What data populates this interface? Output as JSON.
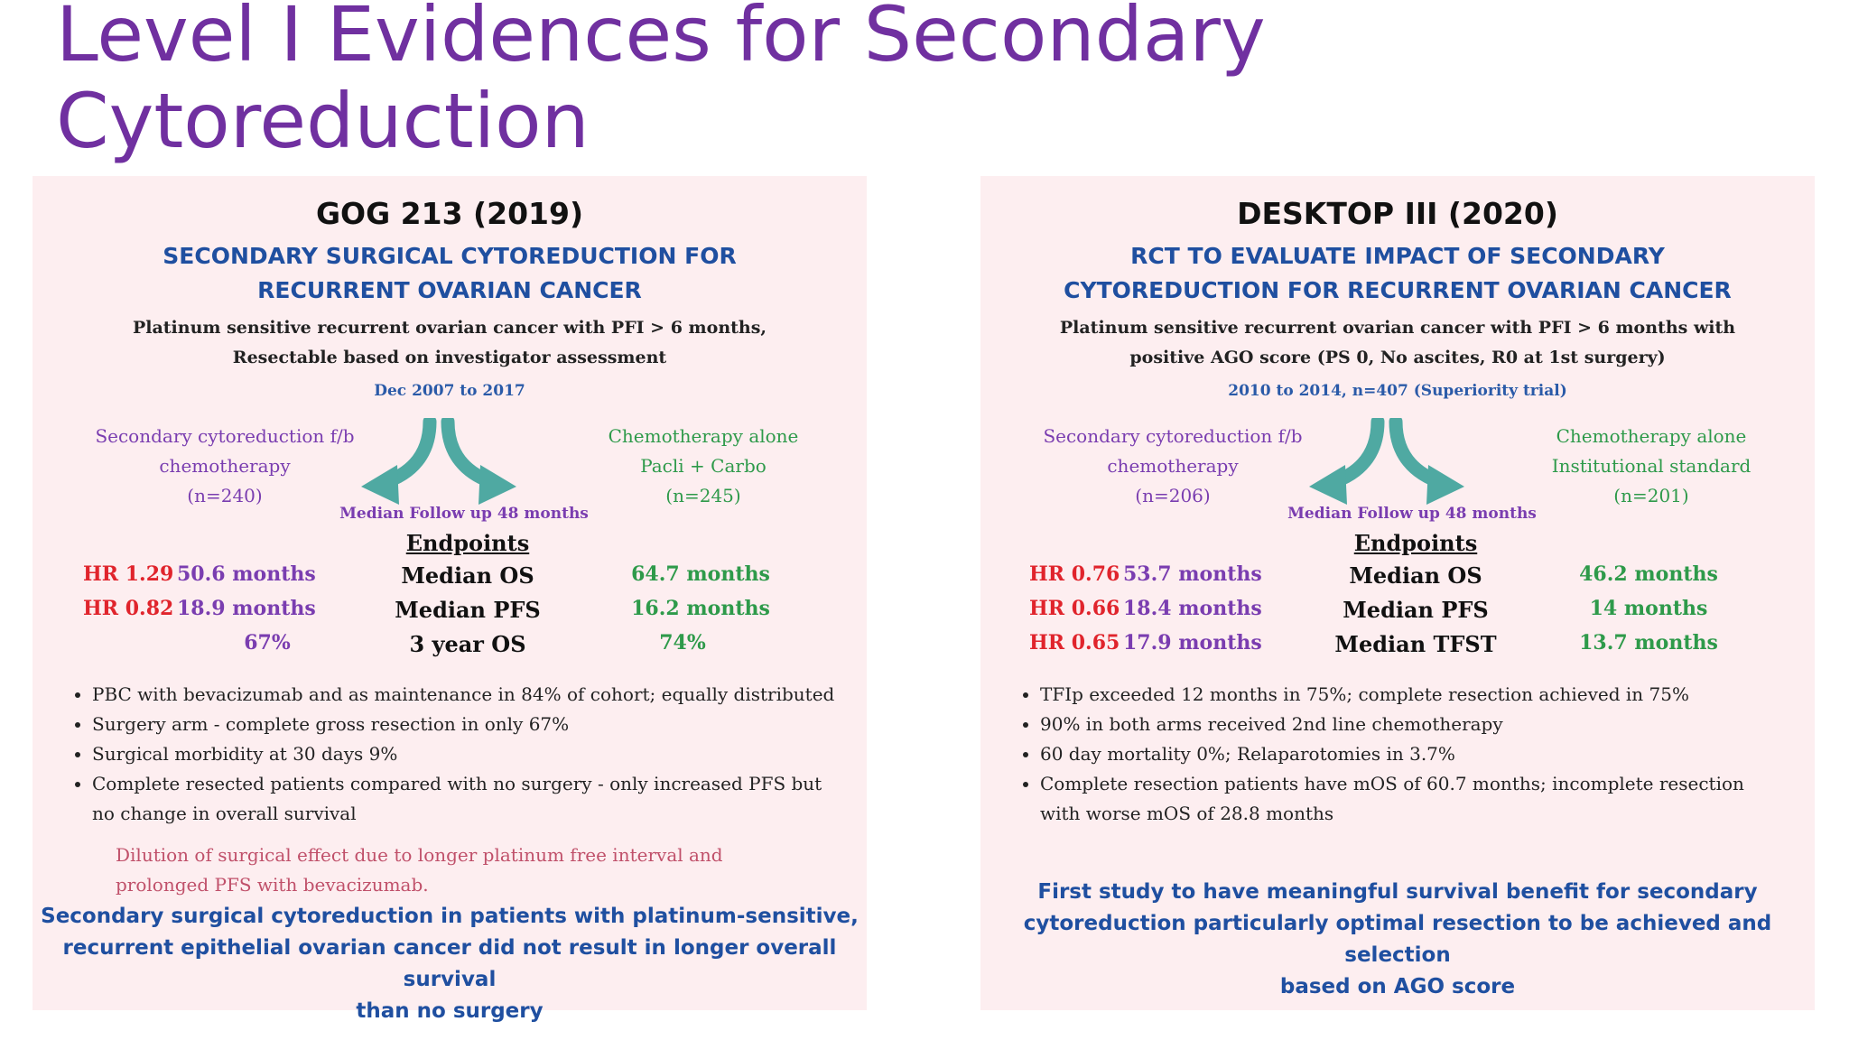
{
  "slide": {
    "title_line1": "Level I Evidences for Secondary",
    "title_line2": "Cytoreduction"
  },
  "left": {
    "title": "GOG 213 (2019)",
    "subtitle_line1": "SECONDARY SURGICAL CYTOREDUCTION FOR",
    "subtitle_line2": "RECURRENT OVARIAN CANCER",
    "eligibility_line1": "Platinum sensitive recurrent ovarian cancer with PFI > 6 months,",
    "eligibility_line2": "Resectable based on investigator assessment",
    "period": "Dec 2007 to 2017",
    "arm1_line1": "Secondary cytoreduction f/b",
    "arm1_line2": "chemotherapy",
    "arm1_line3": "(n=240)",
    "arm2_line1": "Chemotherapy alone",
    "arm2_line2": "Pacli + Carbo",
    "arm2_line3": "(n=245)",
    "followup": "Median Follow up 48 months",
    "endpoints_heading": "Endpoints",
    "rows": [
      {
        "hr": "HR 1.29",
        "surgery": "50.6 months",
        "endpoint": "Median OS",
        "chemo": "64.7 months"
      },
      {
        "hr": "HR 0.82",
        "surgery": "18.9 months",
        "endpoint": "Median PFS",
        "chemo": "16.2 months"
      },
      {
        "hr": "",
        "surgery": "67%",
        "endpoint": "3 year OS",
        "chemo": "74%"
      }
    ],
    "bullets": [
      "PBC with bevacizumab and as maintenance in 84% of cohort; equally distributed",
      "Surgery arm - complete gross resection in only 67%",
      "Surgical morbidity at 30 days 9%",
      "Complete resected patients compared with no surgery - only increased PFS but no change in overall survival"
    ],
    "note_line1": "Dilution of surgical effect due to longer platinum free interval and",
    "note_line2": "prolonged PFS with bevacizumab.",
    "conclusion_line1": "Secondary surgical cytoreduction in patients with platinum-sensitive,",
    "conclusion_line2": "recurrent epithelial ovarian cancer did not result in longer overall survival",
    "conclusion_line3": "than no surgery"
  },
  "right": {
    "title": "DESKTOP III (2020)",
    "subtitle_line1": "RCT TO EVALUATE IMPACT OF SECONDARY",
    "subtitle_line2": "CYTOREDUCTION FOR RECURRENT OVARIAN CANCER",
    "eligibility_line1": "Platinum sensitive recurrent ovarian cancer with PFI > 6 months with",
    "eligibility_line2": "positive AGO score (PS 0, No ascites, R0 at 1st surgery)",
    "period": "2010 to 2014, n=407 (Superiority trial)",
    "arm1_line1": "Secondary cytoreduction f/b",
    "arm1_line2": "chemotherapy",
    "arm1_line3": "(n=206)",
    "arm2_line1": "Chemotherapy alone",
    "arm2_line2": "Institutional standard",
    "arm2_line3": "(n=201)",
    "followup": "Median Follow up 48 months",
    "endpoints_heading": "Endpoints",
    "rows": [
      {
        "hr": "HR 0.76",
        "surgery": "53.7 months",
        "endpoint": "Median OS",
        "chemo": "46.2 months"
      },
      {
        "hr": "HR 0.66",
        "surgery": "18.4 months",
        "endpoint": "Median PFS",
        "chemo": "14 months"
      },
      {
        "hr": "HR 0.65",
        "surgery": "17.9 months",
        "endpoint": "Median TFST",
        "chemo": "13.7 months"
      }
    ],
    "bullets": [
      "TFIp exceeded 12 months in 75%; complete resection achieved in 75%",
      "90% in both arms received 2nd line chemotherapy",
      "60 day mortality 0%; Relaparotomies in 3.7%",
      "Complete resection patients have mOS of 60.7 months; incomplete resection with worse mOS of 28.8 months"
    ],
    "conclusion_line1": "First study to have meaningful survival benefit for secondary",
    "conclusion_line2": "cytoreduction particularly optimal resection to be achieved and selection",
    "conclusion_line3": "based on AGO score"
  },
  "colors": {
    "title": "#7030a0",
    "panel_bg": "#fdeef0",
    "heading_blue": "#1f4fa0",
    "purple": "#7a3db0",
    "green": "#2e9a4a",
    "red": "#e0242c",
    "note_pink": "#c0506a",
    "arrow_teal": "#4fa9a2"
  }
}
